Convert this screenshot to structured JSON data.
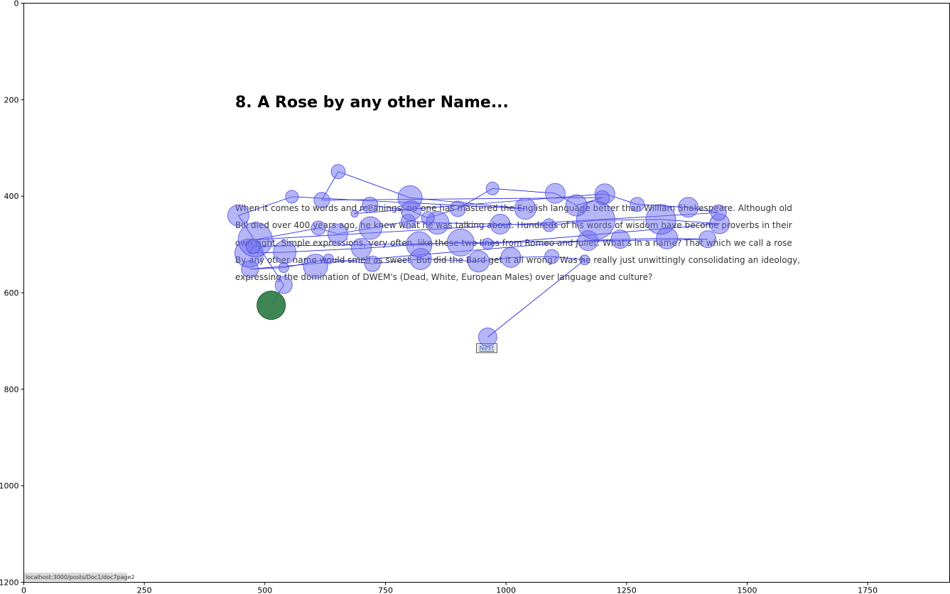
{
  "page": {
    "title": "8. A Rose by any other Name...",
    "paragraph_lines": [
      "When it comes to words and meanings, no-one has mastered the English language better than William Shakespeare. Although old",
      "Bill died over 400 years ago, he knew what he was talking about. Hundreds of his words of wisdom have become proverbs in their",
      "own right. Simple expressions, very often, like these two lines from Romeo and Juliet: What's in a name? That which we call a rose",
      "By any other name would smell as sweet. But did the Bard get it all wrong? Was he really just unwittingly consolidating an ideology,",
      "expressing the domination of DWEM's (Dead, White, European Males) over language and culture?"
    ],
    "next_link": "Next",
    "status_url": "localhost:3000/posts/Doc1/doc7page2"
  },
  "chart_data": {
    "type": "scatter",
    "title": "",
    "xlabel": "",
    "ylabel": "",
    "xlim": [
      0,
      1920
    ],
    "ylim": [
      1200,
      0
    ],
    "x_ticks": [
      0,
      250,
      500,
      750,
      1000,
      1250,
      1500,
      1750
    ],
    "y_ticks": [
      0,
      200,
      400,
      600,
      800,
      1000,
      1200
    ],
    "colors": {
      "fixation": "#6e6ef0",
      "saccade": "#2020dd",
      "last_fixation": "#2e7d46"
    },
    "fixations": [
      {
        "x": 513,
        "y": 626,
        "r": 20
      },
      {
        "x": 539,
        "y": 584,
        "r": 12
      },
      {
        "x": 469,
        "y": 551,
        "r": 12
      },
      {
        "x": 539,
        "y": 548,
        "r": 7
      },
      {
        "x": 605,
        "y": 545,
        "r": 17
      },
      {
        "x": 632,
        "y": 530,
        "r": 7
      },
      {
        "x": 723,
        "y": 540,
        "r": 11
      },
      {
        "x": 823,
        "y": 530,
        "r": 15
      },
      {
        "x": 943,
        "y": 535,
        "r": 15
      },
      {
        "x": 1010,
        "y": 527,
        "r": 14
      },
      {
        "x": 1095,
        "y": 525,
        "r": 10
      },
      {
        "x": 1163,
        "y": 532,
        "r": 7
      },
      {
        "x": 467,
        "y": 518,
        "r": 20
      },
      {
        "x": 541,
        "y": 516,
        "r": 16
      },
      {
        "x": 700,
        "y": 508,
        "r": 14
      },
      {
        "x": 820,
        "y": 500,
        "r": 18
      },
      {
        "x": 906,
        "y": 496,
        "r": 19
      },
      {
        "x": 962,
        "y": 499,
        "r": 8
      },
      {
        "x": 1170,
        "y": 492,
        "r": 14
      },
      {
        "x": 1237,
        "y": 489,
        "r": 13
      },
      {
        "x": 1334,
        "y": 487,
        "r": 15
      },
      {
        "x": 1418,
        "y": 489,
        "r": 12
      },
      {
        "x": 480,
        "y": 490,
        "r": 24
      },
      {
        "x": 476,
        "y": 504,
        "r": 10
      },
      {
        "x": 651,
        "y": 478,
        "r": 14
      },
      {
        "x": 719,
        "y": 466,
        "r": 16
      },
      {
        "x": 611,
        "y": 466,
        "r": 10
      },
      {
        "x": 797,
        "y": 452,
        "r": 10
      },
      {
        "x": 858,
        "y": 455,
        "r": 16
      },
      {
        "x": 988,
        "y": 458,
        "r": 14
      },
      {
        "x": 1089,
        "y": 460,
        "r": 9
      },
      {
        "x": 1186,
        "y": 450,
        "r": 27
      },
      {
        "x": 1321,
        "y": 448,
        "r": 21
      },
      {
        "x": 1443,
        "y": 457,
        "r": 14
      },
      {
        "x": 445,
        "y": 440,
        "r": 15
      },
      {
        "x": 556,
        "y": 401,
        "r": 9
      },
      {
        "x": 618,
        "y": 408,
        "r": 11
      },
      {
        "x": 652,
        "y": 349,
        "r": 10
      },
      {
        "x": 686,
        "y": 436,
        "r": 5
      },
      {
        "x": 718,
        "y": 418,
        "r": 11
      },
      {
        "x": 801,
        "y": 403,
        "r": 17
      },
      {
        "x": 803,
        "y": 430,
        "r": 14
      },
      {
        "x": 838,
        "y": 445,
        "r": 9
      },
      {
        "x": 900,
        "y": 426,
        "r": 11
      },
      {
        "x": 972,
        "y": 384,
        "r": 9
      },
      {
        "x": 1040,
        "y": 426,
        "r": 15
      },
      {
        "x": 1102,
        "y": 394,
        "r": 14
      },
      {
        "x": 1146,
        "y": 419,
        "r": 15
      },
      {
        "x": 1205,
        "y": 395,
        "r": 14
      },
      {
        "x": 1200,
        "y": 403,
        "r": 10
      },
      {
        "x": 1272,
        "y": 417,
        "r": 10
      },
      {
        "x": 1378,
        "y": 423,
        "r": 14
      },
      {
        "x": 1441,
        "y": 434,
        "r": 11
      },
      {
        "x": 962,
        "y": 692,
        "r": 13
      }
    ],
    "scanpath": [
      [
        962,
        692
      ],
      [
        1163,
        532
      ],
      [
        1095,
        525
      ],
      [
        1010,
        527
      ],
      [
        943,
        535
      ],
      [
        823,
        530
      ],
      [
        723,
        540
      ],
      [
        632,
        530
      ],
      [
        539,
        548
      ],
      [
        469,
        551
      ],
      [
        1170,
        492
      ],
      [
        1237,
        489
      ],
      [
        1334,
        487
      ],
      [
        1418,
        489
      ],
      [
        476,
        504
      ],
      [
        467,
        518
      ],
      [
        541,
        516
      ],
      [
        700,
        508
      ],
      [
        820,
        500
      ],
      [
        906,
        496
      ],
      [
        962,
        499
      ],
      [
        1443,
        457
      ],
      [
        1321,
        448
      ],
      [
        1186,
        450
      ],
      [
        1089,
        460
      ],
      [
        988,
        458
      ],
      [
        858,
        455
      ],
      [
        797,
        452
      ],
      [
        719,
        466
      ],
      [
        651,
        478
      ],
      [
        611,
        466
      ],
      [
        480,
        490
      ],
      [
        1441,
        434
      ],
      [
        1378,
        423
      ],
      [
        1272,
        417
      ],
      [
        1205,
        395
      ],
      [
        686,
        436
      ],
      [
        718,
        418
      ],
      [
        803,
        430
      ],
      [
        838,
        445
      ],
      [
        900,
        426
      ],
      [
        972,
        384
      ],
      [
        1102,
        394
      ],
      [
        1146,
        419
      ],
      [
        1200,
        403
      ],
      [
        618,
        408
      ],
      [
        652,
        349
      ],
      [
        801,
        403
      ],
      [
        1040,
        426
      ],
      [
        556,
        401
      ],
      [
        445,
        440
      ],
      [
        539,
        584
      ],
      [
        513,
        626
      ]
    ],
    "last_fixation_index": 0
  }
}
